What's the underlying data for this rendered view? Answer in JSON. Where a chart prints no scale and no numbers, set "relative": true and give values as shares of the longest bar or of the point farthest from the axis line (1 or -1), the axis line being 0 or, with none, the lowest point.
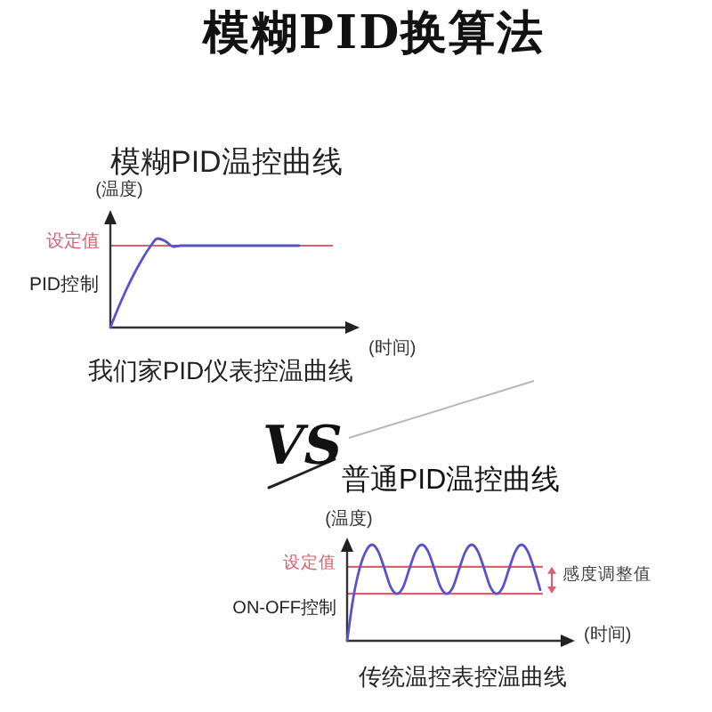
{
  "chart_data": [
    {
      "type": "line",
      "title": "模糊PID换算法",
      "subtitle": "模糊PID温控曲线",
      "xlabel": "(时间)",
      "ylabel": "(温度)",
      "relative": true,
      "categories": [
        null,
        null,
        null,
        null,
        null,
        null,
        null,
        null,
        null,
        null,
        null,
        null,
        null,
        null,
        null,
        null,
        null,
        null,
        null,
        null,
        null,
        null,
        null,
        null,
        null
      ],
      "series": [
        {
          "name": "PID控制",
          "color": "#5a52c8",
          "values": [
            0,
            0.22,
            0.42,
            0.6,
            0.76,
            0.9,
            1,
            0.97,
            0.91,
            0.92,
            0.92,
            0.92,
            0.92,
            0.92,
            0.92,
            0.92,
            0.92,
            0.92,
            0.92,
            0.92,
            0.92,
            0.92,
            0.92,
            0.92,
            0.92
          ]
        }
      ],
      "ref_lines": [
        {
          "axis": "y",
          "value": 0.92,
          "label": "设定值",
          "color": "#dc6170"
        }
      ],
      "annotations": [
        "我们家PID仪表控温曲线"
      ]
    },
    {
      "type": "line",
      "title": "普通PID温控曲线",
      "xlabel": "(时间)",
      "ylabel": "(温度)",
      "relative": true,
      "categories": [
        null,
        null,
        null,
        null,
        null,
        null,
        null,
        null,
        null,
        null,
        null,
        null,
        null,
        null,
        null,
        null,
        null,
        null,
        null,
        null,
        null,
        null,
        null,
        null,
        null,
        null,
        null,
        null,
        null,
        null,
        null,
        null
      ],
      "series": [
        {
          "name": "ON-OFF控制",
          "color": "#5a52c8",
          "values": [
            0,
            0.45,
            0.75,
            0.93,
            1,
            0.93,
            0.75,
            0.56,
            0.49,
            0.56,
            0.75,
            0.93,
            1,
            0.93,
            0.75,
            0.56,
            0.49,
            0.56,
            0.75,
            0.93,
            1,
            0.93,
            0.75,
            0.56,
            0.49,
            0.56,
            0.75,
            0.93,
            1,
            0.93,
            0.75,
            0.53
          ]
        }
      ],
      "ref_lines": [
        {
          "axis": "y",
          "value": 0.77,
          "label": "设定值",
          "color": "#dc6170"
        },
        {
          "axis": "y",
          "value": 0.49,
          "color": "#dc6170"
        }
      ],
      "annotations": [
        "VS",
        "感度调整值",
        "传统温控表控温曲线"
      ]
    }
  ]
}
